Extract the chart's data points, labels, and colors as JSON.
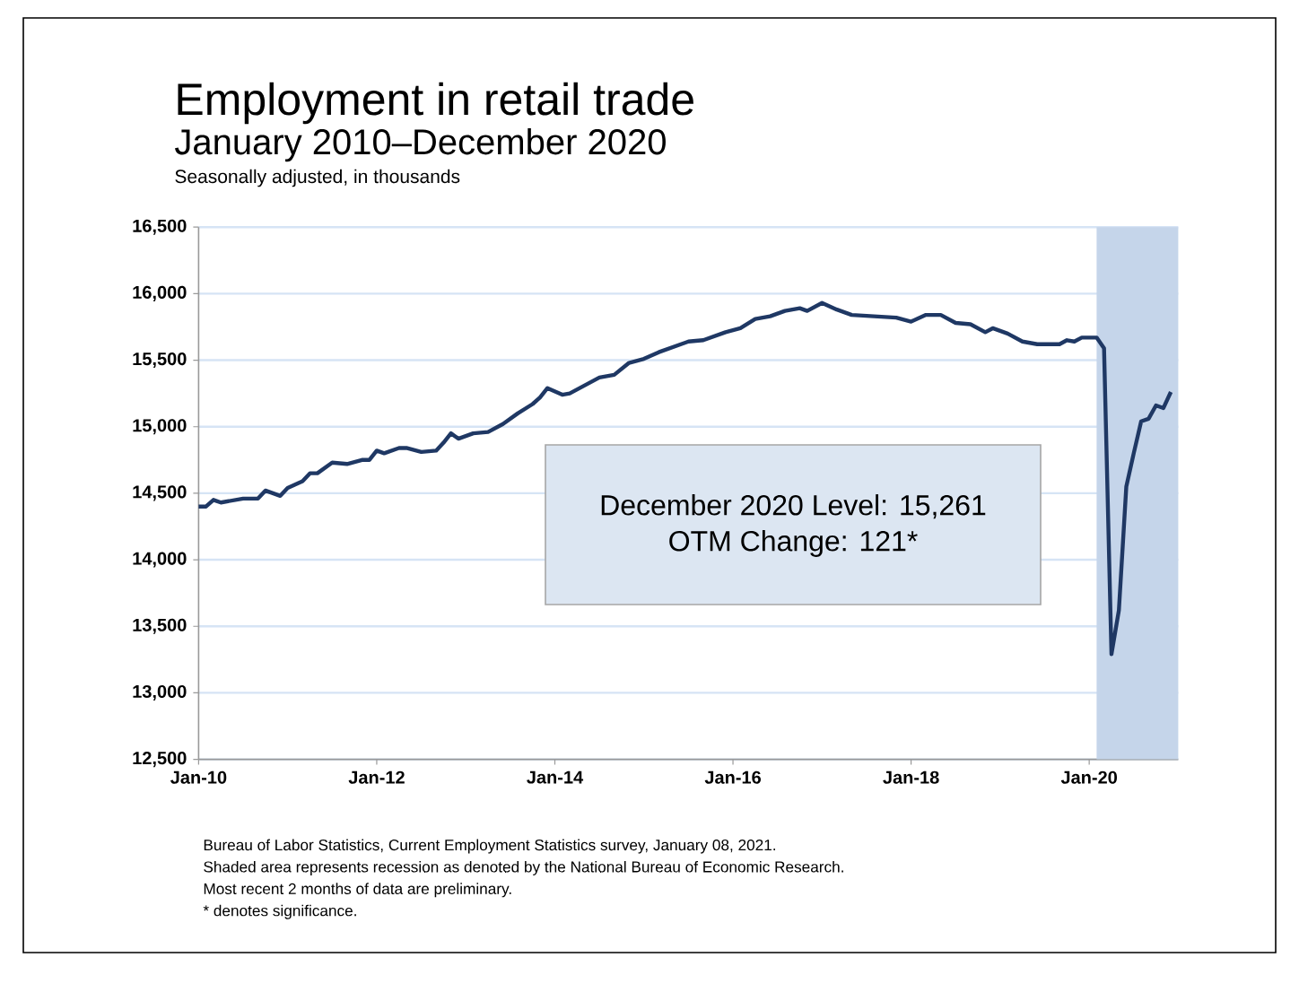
{
  "chart_data": {
    "type": "line",
    "title": "Employment in retail trade",
    "subtitle": "January 2010–December 2020",
    "ylabel": "Seasonally adjusted, in thousands",
    "x": [
      "2010-01",
      "2010-02",
      "2010-03",
      "2010-04",
      "2010-07",
      "2010-09",
      "2010-10",
      "2010-12",
      "2011-01",
      "2011-03",
      "2011-04",
      "2011-05",
      "2011-07",
      "2011-09",
      "2011-11",
      "2011-12",
      "2012-01",
      "2012-02",
      "2012-04",
      "2012-05",
      "2012-07",
      "2012-09",
      "2012-10",
      "2012-11",
      "2012-12",
      "2013-02",
      "2013-04",
      "2013-06",
      "2013-08",
      "2013-10",
      "2013-11",
      "2013-12",
      "2014-02",
      "2014-03",
      "2014-05",
      "2014-07",
      "2014-09",
      "2014-11",
      "2015-01",
      "2015-03",
      "2015-07",
      "2015-09",
      "2015-12",
      "2016-02",
      "2016-04",
      "2016-06",
      "2016-08",
      "2016-10",
      "2016-11",
      "2017-01",
      "2017-03",
      "2017-05",
      "2017-08",
      "2017-11",
      "2018-01",
      "2018-03",
      "2018-05",
      "2018-07",
      "2018-09",
      "2018-11",
      "2018-12",
      "2019-02",
      "2019-04",
      "2019-06",
      "2019-09",
      "2019-10",
      "2019-11",
      "2019-12",
      "2020-02",
      "2020-03",
      "2020-04",
      "2020-05",
      "2020-06",
      "2020-07",
      "2020-08",
      "2020-09",
      "2020-10",
      "2020-11",
      "2020-12"
    ],
    "series": [
      {
        "color": "#1f3864",
        "values": [
          14400,
          14400,
          14450,
          14430,
          14460,
          14460,
          14520,
          14480,
          14540,
          14590,
          14650,
          14650,
          14730,
          14720,
          14750,
          14750,
          14820,
          14800,
          14840,
          14840,
          14810,
          14820,
          14880,
          14950,
          14910,
          14950,
          14960,
          15020,
          15100,
          15170,
          15220,
          15290,
          15240,
          15250,
          15310,
          15370,
          15390,
          15480,
          15510,
          15560,
          15640,
          15650,
          15710,
          15740,
          15810,
          15830,
          15870,
          15890,
          15870,
          15930,
          15880,
          15840,
          15830,
          15820,
          15790,
          15840,
          15840,
          15780,
          15770,
          15710,
          15740,
          15700,
          15640,
          15620,
          15620,
          15650,
          15640,
          15670,
          15670,
          15590,
          13290,
          13620,
          14550,
          14800,
          15040,
          15060,
          15160,
          15140,
          15261
        ]
      }
    ],
    "xlim": [
      "2010-01",
      "2021-01"
    ],
    "xticks": [
      {
        "value": "2010-01",
        "label": "Jan-10"
      },
      {
        "value": "2012-01",
        "label": "Jan-12"
      },
      {
        "value": "2014-01",
        "label": "Jan-14"
      },
      {
        "value": "2016-01",
        "label": "Jan-16"
      },
      {
        "value": "2018-01",
        "label": "Jan-18"
      },
      {
        "value": "2020-01",
        "label": "Jan-20"
      }
    ],
    "ylim": [
      12500,
      16500
    ],
    "yticks": [
      {
        "value": 12500,
        "label": "12,500"
      },
      {
        "value": 13000,
        "label": "13,000"
      },
      {
        "value": 13500,
        "label": "13,500"
      },
      {
        "value": 14000,
        "label": "14,000"
      },
      {
        "value": 14500,
        "label": "14,500"
      },
      {
        "value": 15000,
        "label": "15,000"
      },
      {
        "value": 15500,
        "label": "15,500"
      },
      {
        "value": 16000,
        "label": "16,000"
      },
      {
        "value": 16500,
        "label": "16,500"
      }
    ],
    "grid": "y",
    "bands": [
      {
        "axis": "x",
        "from": "2020-02",
        "to": "2021-01",
        "color": "#c5d5ea"
      }
    ],
    "annotations": [
      "December 2020 Level: 15,261",
      "OTM Change: 121*",
      "Bureau of Labor Statistics, Current Employment Statistics survey, January 08, 2021.",
      "Shaded area represents recession as denoted by the National Bureau of Economic Research.",
      "Most recent 2 months of data are preliminary.",
      "* denotes significance."
    ]
  }
}
